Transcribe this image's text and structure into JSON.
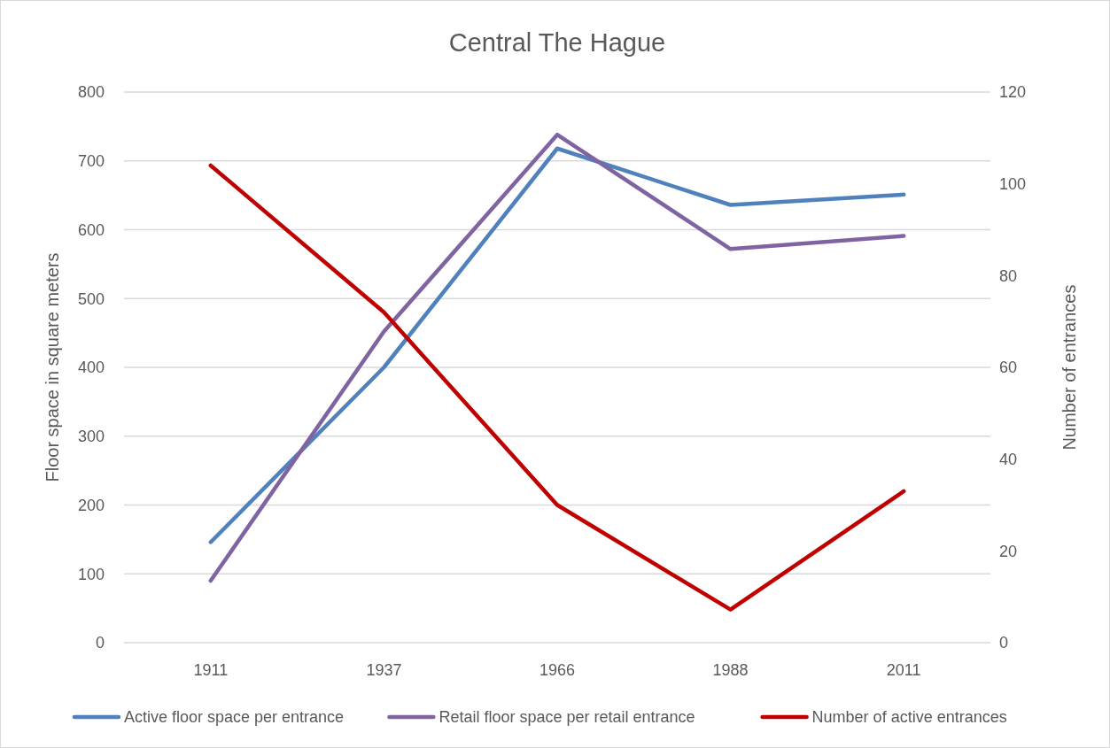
{
  "chart_data": {
    "type": "line",
    "title": "Central The Hague",
    "categories": [
      "1911",
      "1937",
      "1966",
      "1988",
      "2011"
    ],
    "ylabel": "Floor space in square meters",
    "y2label": "Number of entrances",
    "ylim": [
      0,
      800
    ],
    "yticks": [
      0,
      100,
      200,
      300,
      400,
      500,
      600,
      700,
      800
    ],
    "y2lim": [
      0,
      120
    ],
    "y2ticks": [
      0,
      20,
      40,
      60,
      80,
      100,
      120
    ],
    "grid": "y",
    "legend": "bottom",
    "marker": "none",
    "line_style": "solid",
    "series": [
      {
        "name": "Active floor space per entrance",
        "color": "#4f81bd",
        "values": [
          146,
          400,
          718,
          636,
          651
        ]
      },
      {
        "name": "Retail floor space per retail entrance",
        "color": "#8064a2",
        "values": [
          90,
          452,
          738,
          572,
          591
        ]
      },
      {
        "name": "Number of active entrances",
        "color": "#c00000",
        "axis": "y2",
        "values": [
          104,
          72,
          30,
          7.2,
          33
        ]
      }
    ]
  }
}
